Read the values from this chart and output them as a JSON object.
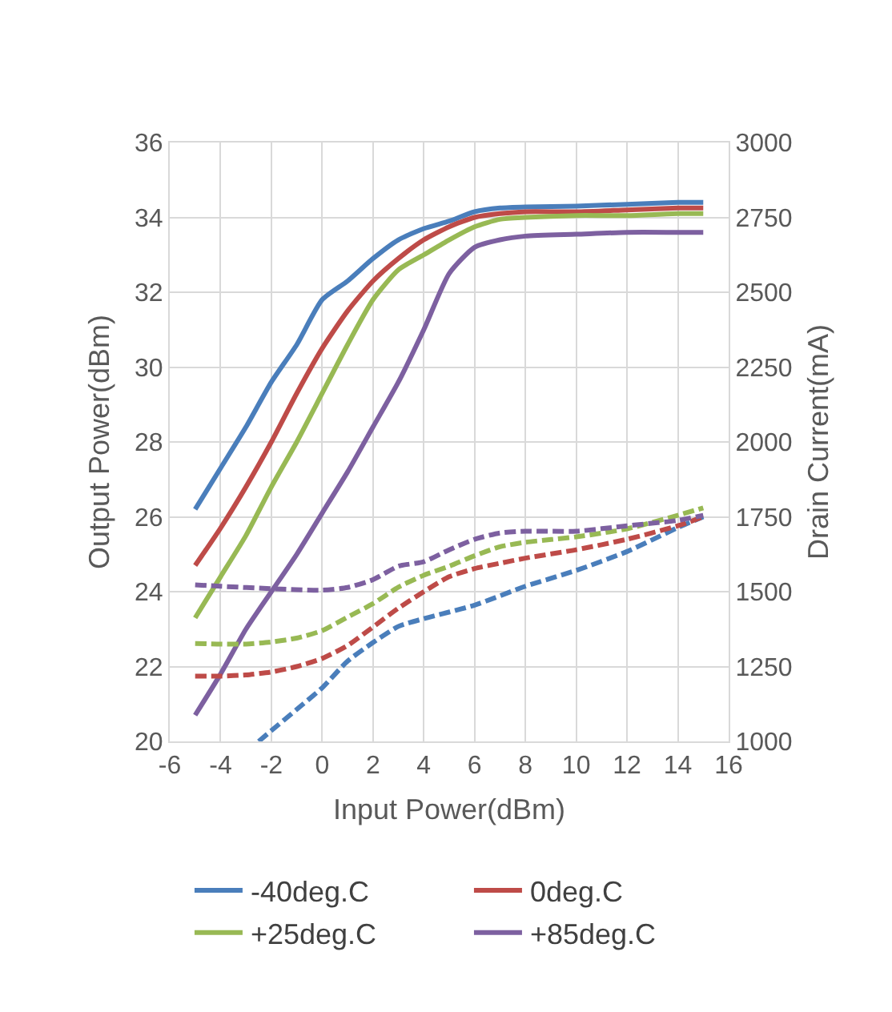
{
  "chart_data": {
    "type": "line",
    "xlabel": "Input Power(dBm)",
    "ylabel": "Output Power(dBm)",
    "y2label": "Drain Current(mA)",
    "xlim": [
      -6,
      16
    ],
    "xticks": [
      -6,
      -4,
      -2,
      0,
      2,
      4,
      6,
      8,
      10,
      12,
      14,
      16
    ],
    "ylim": [
      20,
      36
    ],
    "yticks": [
      20,
      22,
      24,
      26,
      28,
      30,
      32,
      34,
      36
    ],
    "y2lim": [
      1000,
      3000
    ],
    "y2ticks": [
      1000,
      1250,
      1500,
      1750,
      2000,
      2250,
      2500,
      2750,
      3000
    ],
    "grid": true,
    "legend": "bottom",
    "marker": "none",
    "series": [
      {
        "name": "-40deg.C",
        "color": "#4a7ebb",
        "line_style": "solid",
        "x": [
          -5,
          -4,
          -3,
          -2,
          -1,
          0,
          1,
          2,
          3,
          4,
          5,
          6,
          7,
          8,
          10,
          12,
          14,
          15
        ],
        "values": [
          26.2,
          27.3,
          28.4,
          29.6,
          30.6,
          31.8,
          32.3,
          32.9,
          33.4,
          33.7,
          33.9,
          34.15,
          34.25,
          34.28,
          34.3,
          34.35,
          34.4,
          34.4
        ]
      },
      {
        "name": "0deg.C",
        "color": "#be4b48",
        "line_style": "solid",
        "x": [
          -5,
          -4,
          -3,
          -2,
          -1,
          0,
          1,
          2,
          3,
          4,
          5,
          6,
          7,
          8,
          10,
          12,
          14,
          15
        ],
        "values": [
          24.7,
          25.7,
          26.8,
          28.0,
          29.3,
          30.5,
          31.5,
          32.3,
          32.9,
          33.4,
          33.75,
          34.0,
          34.1,
          34.15,
          34.15,
          34.2,
          34.25,
          34.25
        ]
      },
      {
        "name": "+25deg.C",
        "color": "#98b954",
        "line_style": "solid",
        "x": [
          -5,
          -4,
          -3,
          -2,
          -1,
          0,
          1,
          2,
          3,
          4,
          5,
          6,
          7,
          8,
          10,
          12,
          14,
          15
        ],
        "values": [
          23.3,
          24.4,
          25.5,
          26.8,
          28.0,
          29.3,
          30.6,
          31.8,
          32.6,
          33.0,
          33.4,
          33.75,
          33.95,
          34.0,
          34.05,
          34.05,
          34.1,
          34.1
        ]
      },
      {
        "name": "+85deg.C",
        "color": "#7d60a0",
        "line_style": "solid",
        "x": [
          -5,
          -4,
          -3,
          -2,
          -1,
          0,
          1,
          2,
          3,
          4,
          5,
          6,
          7,
          8,
          10,
          12,
          14,
          15
        ],
        "values": [
          20.7,
          21.8,
          23.0,
          24.0,
          25.0,
          26.1,
          27.2,
          28.4,
          29.6,
          31.0,
          32.5,
          33.2,
          33.4,
          33.5,
          33.55,
          33.6,
          33.6,
          33.6
        ]
      },
      {
        "color": "#4a7ebb",
        "line_style": "dashed",
        "axis": "y2",
        "x": [
          -2.5,
          -2,
          -1,
          0,
          1,
          2,
          3,
          4,
          6,
          8,
          10,
          12,
          14,
          15
        ],
        "values": [
          1000,
          1036,
          1107,
          1179,
          1268,
          1330,
          1384,
          1410,
          1455,
          1518,
          1571,
          1634,
          1714,
          1750
        ]
      },
      {
        "color": "#be4b48",
        "line_style": "dashed",
        "axis": "y2",
        "x": [
          -5,
          -4,
          -3,
          -2,
          -1,
          0,
          1,
          2,
          3,
          4,
          5,
          6,
          7,
          8,
          10,
          12,
          14,
          15
        ],
        "values": [
          1218,
          1218,
          1222,
          1232,
          1250,
          1277,
          1320,
          1382,
          1445,
          1500,
          1550,
          1577,
          1595,
          1612,
          1640,
          1675,
          1720,
          1750
        ]
      },
      {
        "color": "#98b954",
        "line_style": "dashed",
        "axis": "y2",
        "x": [
          -5,
          -4,
          -3,
          -2,
          -1,
          0,
          1,
          2,
          3,
          4,
          5,
          6,
          7,
          8,
          10,
          12,
          14,
          15
        ],
        "values": [
          1327,
          1325,
          1325,
          1332,
          1345,
          1370,
          1415,
          1460,
          1515,
          1555,
          1585,
          1620,
          1650,
          1665,
          1683,
          1710,
          1755,
          1780
        ]
      },
      {
        "color": "#7d60a0",
        "line_style": "dashed",
        "axis": "y2",
        "x": [
          -5,
          -4,
          -2,
          0,
          1,
          2,
          3,
          4,
          5,
          6,
          7,
          8,
          10,
          12,
          14,
          15
        ],
        "values": [
          1523,
          1518,
          1510,
          1505,
          1514,
          1540,
          1585,
          1600,
          1640,
          1675,
          1696,
          1702,
          1702,
          1720,
          1738,
          1755
        ]
      }
    ]
  }
}
